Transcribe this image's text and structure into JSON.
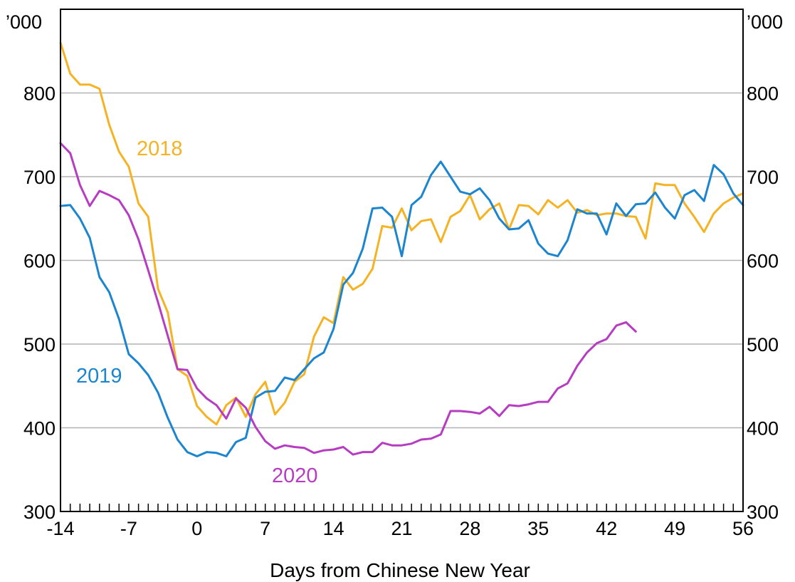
{
  "chart_data": {
    "type": "line",
    "xlabel": "Days from Chinese New Year",
    "unit_left": "’000",
    "unit_right": "’000",
    "xlim": [
      -14,
      56
    ],
    "ylim": [
      300,
      900
    ],
    "x_ticks": [
      -14,
      -7,
      0,
      7,
      14,
      21,
      28,
      35,
      42,
      49,
      56
    ],
    "y_ticks": [
      300,
      400,
      500,
      600,
      700,
      800
    ],
    "grid": true,
    "series": [
      {
        "name": "2018",
        "color": "#f5b324",
        "x_start": -14,
        "values": [
          860,
          823,
          810,
          810,
          805,
          762,
          730,
          712,
          668,
          652,
          566,
          538,
          470,
          462,
          426,
          413,
          404,
          427,
          436,
          413,
          440,
          455,
          416,
          430,
          455,
          464,
          509,
          532,
          525,
          580,
          565,
          572,
          590,
          641,
          639,
          662,
          636,
          647,
          649,
          622,
          652,
          659,
          678,
          649,
          661,
          668,
          637,
          666,
          665,
          655,
          672,
          663,
          672,
          657,
          660,
          654,
          656,
          656,
          653,
          652,
          626,
          692,
          690,
          690,
          668,
          652,
          634,
          656,
          668,
          675,
          680
        ]
      },
      {
        "name": "2019",
        "color": "#1c85cf",
        "x_start": -14,
        "values": [
          665,
          666,
          650,
          627,
          580,
          562,
          530,
          488,
          477,
          463,
          442,
          412,
          386,
          371,
          366,
          371,
          370,
          366,
          383,
          388,
          436,
          443,
          444,
          460,
          457,
          470,
          483,
          490,
          518,
          571,
          585,
          614,
          662,
          663,
          652,
          605,
          666,
          676,
          702,
          718,
          700,
          682,
          679,
          686,
          672,
          650,
          637,
          638,
          648,
          620,
          608,
          605,
          624,
          661,
          656,
          656,
          631,
          668,
          653,
          667,
          668,
          681,
          663,
          650,
          678,
          684,
          671,
          714,
          703,
          680,
          666
        ]
      },
      {
        "name": "2020",
        "color": "#b63dc1",
        "x_start": -14,
        "values": [
          740,
          728,
          690,
          665,
          683,
          678,
          672,
          654,
          625,
          588,
          550,
          510,
          470,
          469,
          447,
          435,
          427,
          411,
          435,
          424,
          401,
          384,
          375,
          379,
          377,
          376,
          370,
          373,
          374,
          377,
          368,
          371,
          371,
          382,
          379,
          379,
          381,
          386,
          387,
          392,
          420,
          420,
          419,
          417,
          425,
          414,
          427,
          426,
          428,
          431,
          431,
          447,
          453,
          474,
          490,
          501,
          506,
          522,
          526,
          515
        ]
      }
    ],
    "annotations": [
      {
        "text": "2018",
        "series": "2018"
      },
      {
        "text": "2019",
        "series": "2019"
      },
      {
        "text": "2020",
        "series": "2020"
      }
    ]
  }
}
